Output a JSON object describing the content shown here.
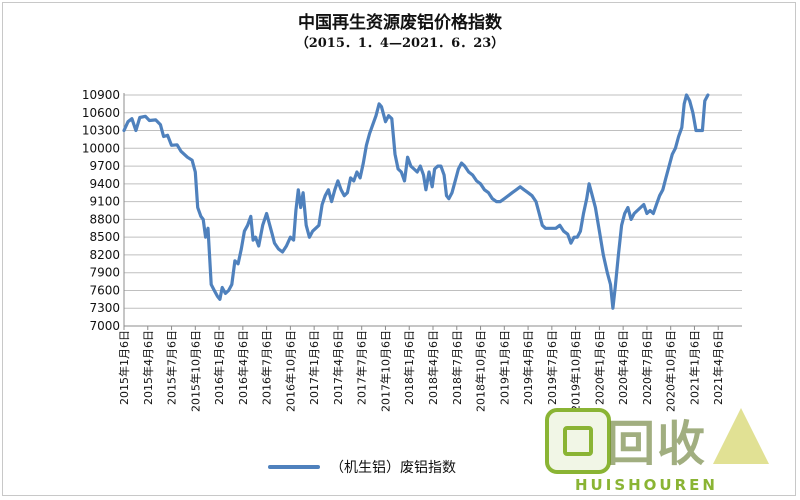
{
  "chart_data": {
    "type": "line",
    "title": "中国再生资源废铝价格指数",
    "subtitle": "（2015．1．4—2021．6．23）",
    "yticks": [
      7000,
      7300,
      7600,
      7900,
      8200,
      8500,
      8800,
      9100,
      9400,
      9700,
      10000,
      10300,
      10600,
      10900
    ],
    "ylim": [
      7000,
      10900
    ],
    "xlim": [
      0,
      78
    ],
    "grid": "horizontal",
    "legend_position": "bottom",
    "categories": [
      "2015年1月6日",
      "2015年4月6日",
      "2015年7月6日",
      "2015年10月6日",
      "2016年1月6日",
      "2016年4月6日",
      "2016年7月6日",
      "2016年10月6日",
      "2017年1月6日",
      "2017年4月6日",
      "2017年7月6日",
      "2017年10月6日",
      "2018年1月6日",
      "2018年4月6日",
      "2018年7月6日",
      "2018年10月6日",
      "2019年1月6日",
      "2019年4月6日",
      "2019年7月6日",
      "2019年10月6日",
      "2020年1月6日",
      "2020年4月6日",
      "2020年7月6日",
      "2020年10月6日",
      "2021年1月6日",
      "2021年4月6日"
    ],
    "category_positions": [
      0,
      3,
      6,
      9,
      12,
      15,
      18,
      21,
      24,
      27,
      30,
      33,
      36,
      39,
      42,
      45,
      48,
      51,
      54,
      57,
      60,
      63,
      66,
      69,
      72,
      75
    ],
    "series": [
      {
        "name": "（机生铝）废铝指数",
        "color": "#4f81bd",
        "points": [
          [
            0,
            10300
          ],
          [
            0.5,
            10450
          ],
          [
            1,
            10500
          ],
          [
            1.5,
            10300
          ],
          [
            2,
            10520
          ],
          [
            2.7,
            10540
          ],
          [
            3.2,
            10470
          ],
          [
            4,
            10480
          ],
          [
            4.6,
            10400
          ],
          [
            5,
            10200
          ],
          [
            5.5,
            10220
          ],
          [
            6,
            10050
          ],
          [
            6.7,
            10060
          ],
          [
            7.2,
            9950
          ],
          [
            8,
            9850
          ],
          [
            8.6,
            9800
          ],
          [
            9,
            9600
          ],
          [
            9.3,
            9000
          ],
          [
            9.7,
            8850
          ],
          [
            10,
            8800
          ],
          [
            10.3,
            8500
          ],
          [
            10.6,
            8650
          ],
          [
            11,
            7700
          ],
          [
            11.4,
            7600
          ],
          [
            11.8,
            7500
          ],
          [
            12.1,
            7450
          ],
          [
            12.4,
            7650
          ],
          [
            12.8,
            7550
          ],
          [
            13.2,
            7600
          ],
          [
            13.6,
            7700
          ],
          [
            14,
            8100
          ],
          [
            14.4,
            8050
          ],
          [
            14.8,
            8300
          ],
          [
            15.2,
            8600
          ],
          [
            15.6,
            8700
          ],
          [
            16,
            8850
          ],
          [
            16.3,
            8450
          ],
          [
            16.6,
            8500
          ],
          [
            17,
            8350
          ],
          [
            17.5,
            8700
          ],
          [
            18,
            8900
          ],
          [
            18.4,
            8700
          ],
          [
            18.7,
            8550
          ],
          [
            19,
            8400
          ],
          [
            19.5,
            8300
          ],
          [
            20,
            8250
          ],
          [
            20.5,
            8350
          ],
          [
            21,
            8500
          ],
          [
            21.4,
            8450
          ],
          [
            21.7,
            8950
          ],
          [
            22,
            9300
          ],
          [
            22.3,
            9000
          ],
          [
            22.6,
            9250
          ],
          [
            23,
            8700
          ],
          [
            23.4,
            8500
          ],
          [
            23.8,
            8600
          ],
          [
            24.2,
            8650
          ],
          [
            24.6,
            8700
          ],
          [
            25,
            9050
          ],
          [
            25.4,
            9200
          ],
          [
            25.8,
            9300
          ],
          [
            26.2,
            9100
          ],
          [
            26.6,
            9300
          ],
          [
            27,
            9450
          ],
          [
            27.4,
            9300
          ],
          [
            27.8,
            9200
          ],
          [
            28.2,
            9250
          ],
          [
            28.6,
            9500
          ],
          [
            29,
            9450
          ],
          [
            29.4,
            9600
          ],
          [
            29.8,
            9500
          ],
          [
            30.2,
            9750
          ],
          [
            30.6,
            10050
          ],
          [
            31,
            10250
          ],
          [
            31.4,
            10400
          ],
          [
            31.8,
            10550
          ],
          [
            32.2,
            10750
          ],
          [
            32.5,
            10700
          ],
          [
            33,
            10450
          ],
          [
            33.4,
            10550
          ],
          [
            33.8,
            10500
          ],
          [
            34.2,
            9900
          ],
          [
            34.6,
            9650
          ],
          [
            35,
            9600
          ],
          [
            35.4,
            9450
          ],
          [
            35.8,
            9850
          ],
          [
            36.2,
            9700
          ],
          [
            36.6,
            9650
          ],
          [
            37,
            9600
          ],
          [
            37.4,
            9700
          ],
          [
            37.8,
            9550
          ],
          [
            38.1,
            9300
          ],
          [
            38.5,
            9600
          ],
          [
            38.9,
            9350
          ],
          [
            39.2,
            9650
          ],
          [
            39.6,
            9700
          ],
          [
            40,
            9700
          ],
          [
            40.4,
            9550
          ],
          [
            40.7,
            9200
          ],
          [
            41,
            9150
          ],
          [
            41.4,
            9250
          ],
          [
            41.8,
            9450
          ],
          [
            42.2,
            9650
          ],
          [
            42.6,
            9750
          ],
          [
            43,
            9700
          ],
          [
            43.5,
            9600
          ],
          [
            44,
            9550
          ],
          [
            44.5,
            9450
          ],
          [
            45,
            9400
          ],
          [
            45.5,
            9300
          ],
          [
            46,
            9250
          ],
          [
            46.5,
            9150
          ],
          [
            47,
            9100
          ],
          [
            47.5,
            9100
          ],
          [
            48,
            9150
          ],
          [
            48.5,
            9200
          ],
          [
            49,
            9250
          ],
          [
            49.5,
            9300
          ],
          [
            50,
            9350
          ],
          [
            50.5,
            9300
          ],
          [
            51,
            9250
          ],
          [
            51.5,
            9200
          ],
          [
            52,
            9100
          ],
          [
            52.4,
            8900
          ],
          [
            52.8,
            8700
          ],
          [
            53.2,
            8650
          ],
          [
            53.6,
            8650
          ],
          [
            54,
            8650
          ],
          [
            54.5,
            8650
          ],
          [
            55,
            8700
          ],
          [
            55.5,
            8600
          ],
          [
            56,
            8550
          ],
          [
            56.4,
            8400
          ],
          [
            56.8,
            8500
          ],
          [
            57.2,
            8500
          ],
          [
            57.6,
            8600
          ],
          [
            58,
            8900
          ],
          [
            58.4,
            9150
          ],
          [
            58.7,
            9400
          ],
          [
            59,
            9250
          ],
          [
            59.5,
            9000
          ],
          [
            60,
            8600
          ],
          [
            60.5,
            8200
          ],
          [
            61,
            7900
          ],
          [
            61.4,
            7700
          ],
          [
            61.7,
            7300
          ],
          [
            62,
            7650
          ],
          [
            62.4,
            8200
          ],
          [
            62.8,
            8700
          ],
          [
            63.2,
            8900
          ],
          [
            63.6,
            9000
          ],
          [
            64,
            8800
          ],
          [
            64.4,
            8900
          ],
          [
            64.8,
            8950
          ],
          [
            65.2,
            9000
          ],
          [
            65.6,
            9050
          ],
          [
            66,
            8900
          ],
          [
            66.4,
            8950
          ],
          [
            66.8,
            8900
          ],
          [
            67.2,
            9050
          ],
          [
            67.6,
            9200
          ],
          [
            68,
            9300
          ],
          [
            68.4,
            9500
          ],
          [
            68.8,
            9700
          ],
          [
            69.2,
            9900
          ],
          [
            69.6,
            10000
          ],
          [
            70,
            10200
          ],
          [
            70.4,
            10350
          ],
          [
            70.7,
            10750
          ],
          [
            71,
            10900
          ],
          [
            71.4,
            10800
          ],
          [
            71.8,
            10600
          ],
          [
            72.2,
            10300
          ],
          [
            72.6,
            10300
          ],
          [
            73,
            10300
          ],
          [
            73.3,
            10800
          ],
          [
            73.7,
            10900
          ]
        ]
      }
    ]
  },
  "legend": {
    "label": "（机生铝）废铝指数"
  },
  "watermark": {
    "text": "回收",
    "sub": "HUISHOUREN"
  }
}
